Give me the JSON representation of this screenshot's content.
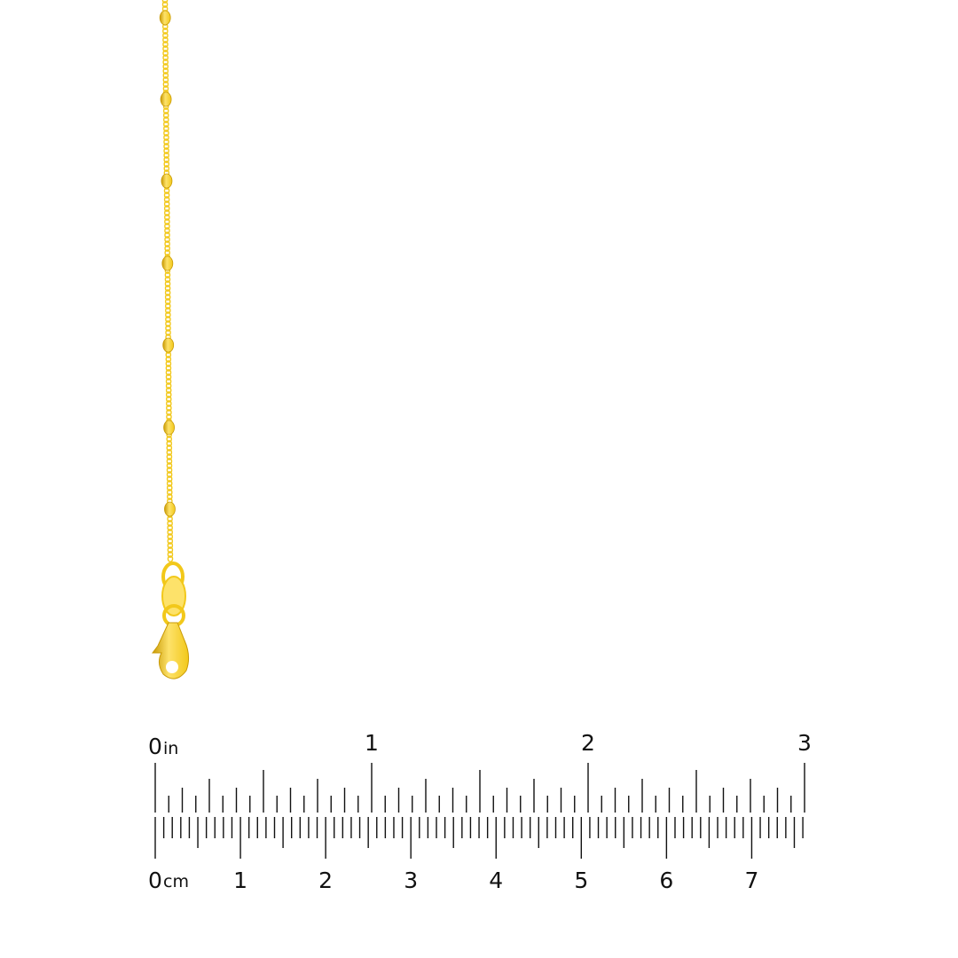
{
  "product_image": {
    "subject": "gold-chain-with-lobster-clasp",
    "metal_color": "#f2c81a",
    "highlight_color": "#fde26a",
    "shade_color": "#c99a05"
  },
  "ruler": {
    "inch_labels": [
      "0",
      "1",
      "2",
      "3"
    ],
    "inch_unit": "in",
    "cm_labels": [
      "0",
      "1",
      "2",
      "3",
      "4",
      "5",
      "6",
      "7"
    ],
    "cm_unit": "cm",
    "inch_subdivisions": 16,
    "length_in": 3,
    "tick_color": "#111111"
  }
}
